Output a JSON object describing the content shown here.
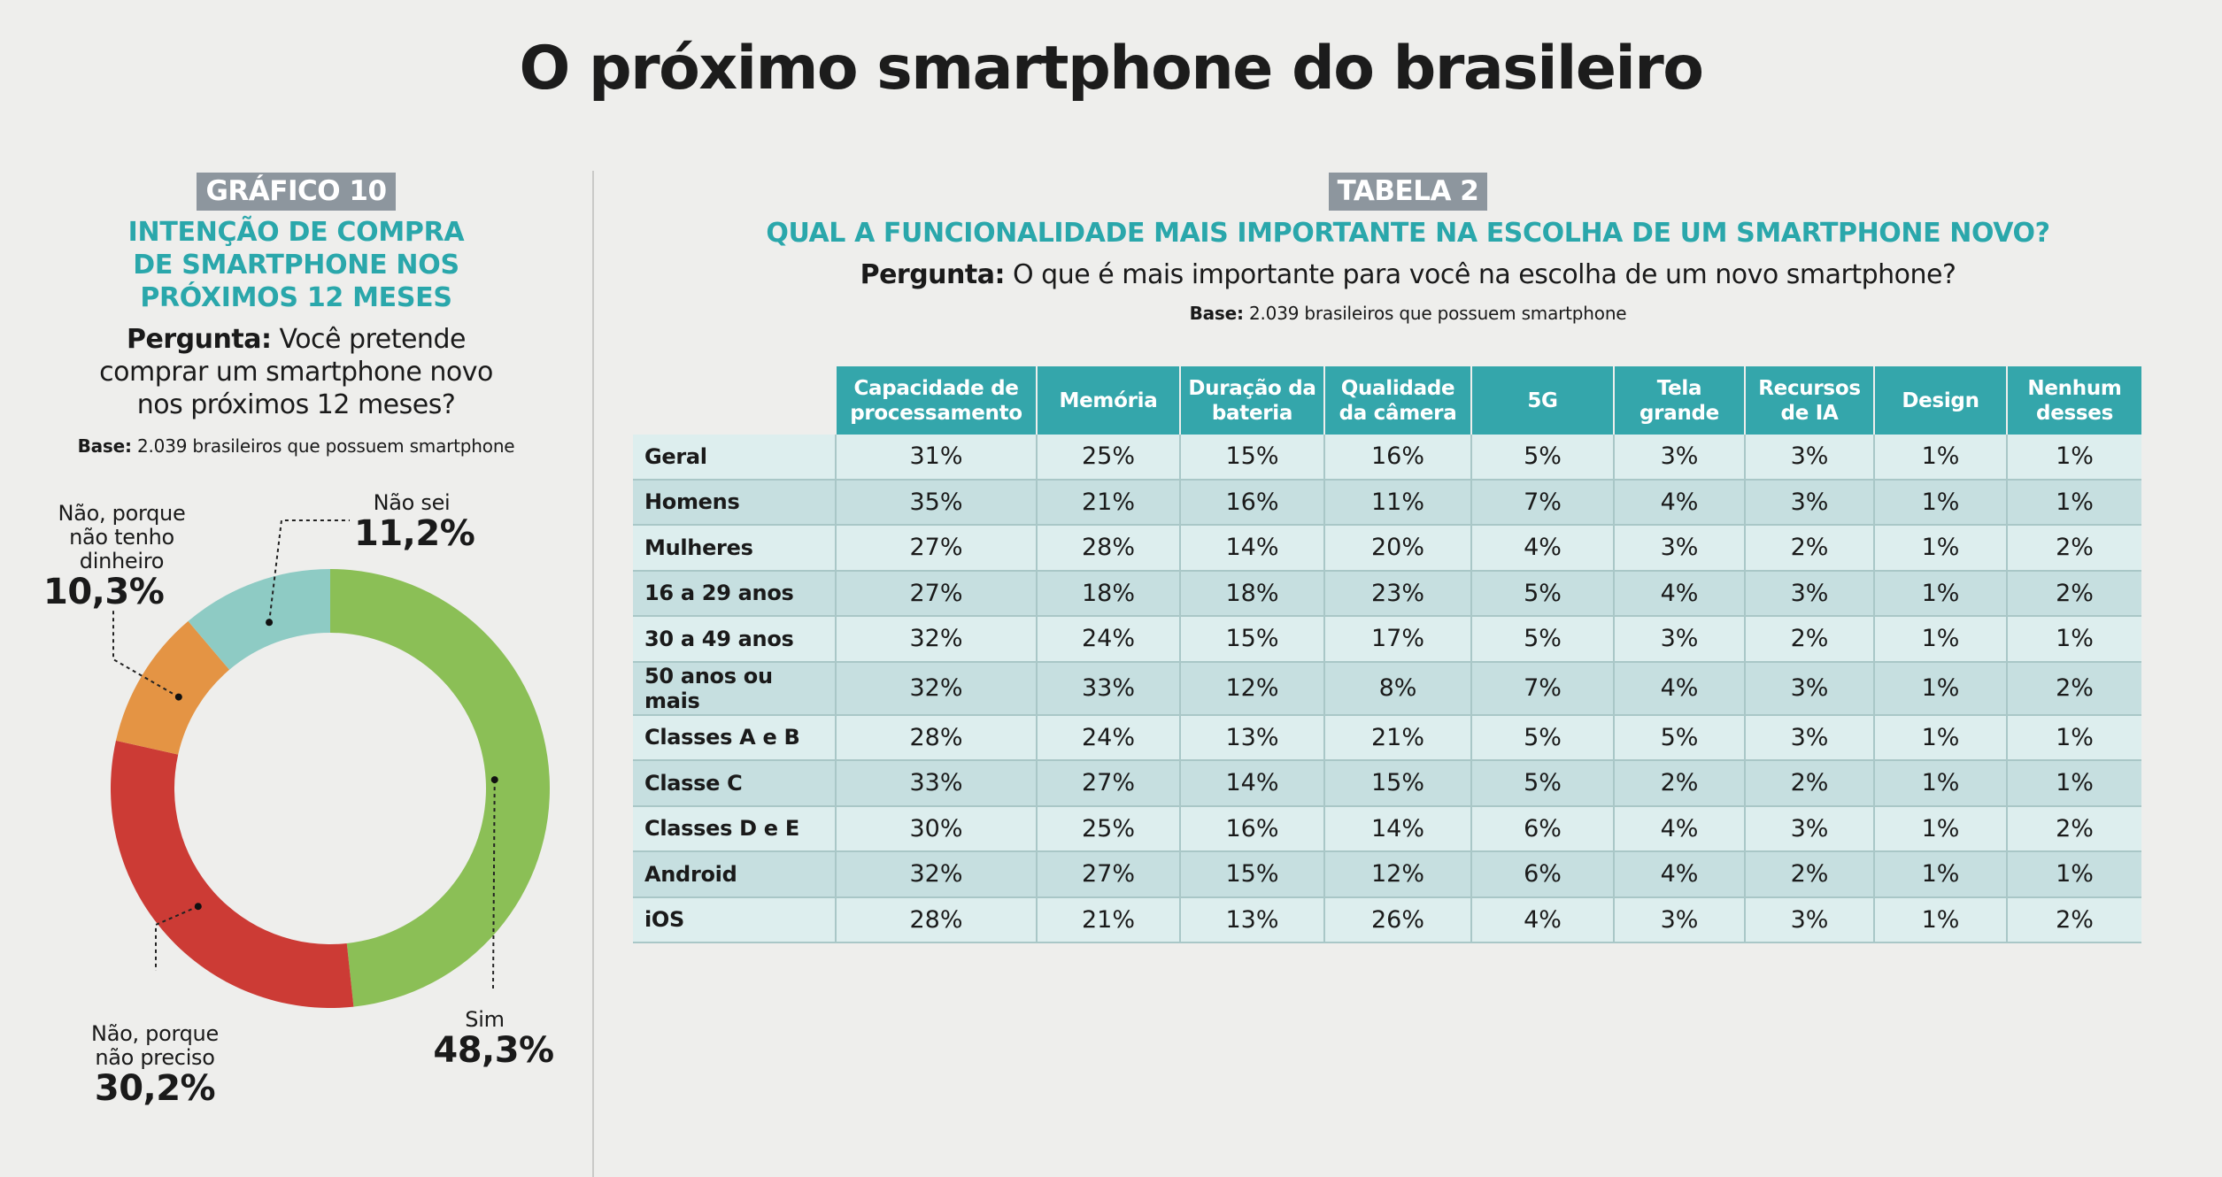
{
  "page_title": "O próximo smartphone do brasileiro",
  "chart_data": [
    {
      "type": "pie",
      "tag": "GRÁFICO 10",
      "title_lines": [
        "INTENÇÃO DE COMPRA",
        "DE SMARTPHONE NOS",
        "PRÓXIMOS 12 MESES"
      ],
      "question_prefix": "Pergunta:",
      "question_lines": [
        "Você pretende",
        "comprar um smartphone novo",
        "nos próximos 12 meses?"
      ],
      "base_prefix": "Base:",
      "base_text": "2.039 brasileiros que possuem smartphone",
      "slices": [
        {
          "label_lines": [
            "Sim"
          ],
          "value": 48.3,
          "value_label": "48,3%",
          "color": "#8bbf56"
        },
        {
          "label_lines": [
            "Não, porque",
            "não preciso"
          ],
          "value": 30.2,
          "value_label": "30,2%",
          "color": "#cc3b35"
        },
        {
          "label_lines": [
            "Não, porque",
            "não tenho",
            "dinheiro"
          ],
          "value": 10.3,
          "value_label": "10,3%",
          "color": "#e49444"
        },
        {
          "label_lines": [
            "Não sei"
          ],
          "value": 11.2,
          "value_label": "11,2%",
          "color": "#8ecbc4"
        }
      ]
    },
    {
      "type": "table",
      "tag": "TABELA 2",
      "title": "QUAL A FUNCIONALIDADE MAIS IMPORTANTE NA ESCOLHA DE UM SMARTPHONE NOVO?",
      "question_prefix": "Pergunta:",
      "question": "O que é mais importante para você na escolha de um novo smartphone?",
      "base_prefix": "Base:",
      "base_text": "2.039 brasileiros que possuem smartphone",
      "columns": [
        [
          "Capacidade de",
          "processamento"
        ],
        [
          "Memória"
        ],
        [
          "Duração da",
          "bateria"
        ],
        [
          "Qualidade",
          "da câmera"
        ],
        [
          "5G"
        ],
        [
          "Tela",
          "grande"
        ],
        [
          "Recursos",
          "de IA"
        ],
        [
          "Design"
        ],
        [
          "Nenhum",
          "desses"
        ]
      ],
      "rows": [
        {
          "label": "Geral",
          "values": [
            "31%",
            "25%",
            "15%",
            "16%",
            "5%",
            "3%",
            "3%",
            "1%",
            "1%"
          ]
        },
        {
          "label": "Homens",
          "values": [
            "35%",
            "21%",
            "16%",
            "11%",
            "7%",
            "4%",
            "3%",
            "1%",
            "1%"
          ]
        },
        {
          "label": "Mulheres",
          "values": [
            "27%",
            "28%",
            "14%",
            "20%",
            "4%",
            "3%",
            "2%",
            "1%",
            "2%"
          ]
        },
        {
          "label": "16 a 29 anos",
          "values": [
            "27%",
            "18%",
            "18%",
            "23%",
            "5%",
            "4%",
            "3%",
            "1%",
            "2%"
          ]
        },
        {
          "label": "30 a 49 anos",
          "values": [
            "32%",
            "24%",
            "15%",
            "17%",
            "5%",
            "3%",
            "2%",
            "1%",
            "1%"
          ]
        },
        {
          "label": "50 anos ou mais",
          "values": [
            "32%",
            "33%",
            "12%",
            "8%",
            "7%",
            "4%",
            "3%",
            "1%",
            "2%"
          ]
        },
        {
          "label": "Classes A e B",
          "values": [
            "28%",
            "24%",
            "13%",
            "21%",
            "5%",
            "5%",
            "3%",
            "1%",
            "1%"
          ]
        },
        {
          "label": "Classe C",
          "values": [
            "33%",
            "27%",
            "14%",
            "15%",
            "5%",
            "2%",
            "2%",
            "1%",
            "1%"
          ]
        },
        {
          "label": "Classes D e E",
          "values": [
            "30%",
            "25%",
            "16%",
            "14%",
            "6%",
            "4%",
            "3%",
            "1%",
            "2%"
          ]
        },
        {
          "label": "Android",
          "values": [
            "32%",
            "27%",
            "15%",
            "12%",
            "6%",
            "4%",
            "2%",
            "1%",
            "1%"
          ]
        },
        {
          "label": "iOS",
          "values": [
            "28%",
            "21%",
            "13%",
            "26%",
            "4%",
            "3%",
            "3%",
            "1%",
            "2%"
          ]
        }
      ]
    }
  ]
}
